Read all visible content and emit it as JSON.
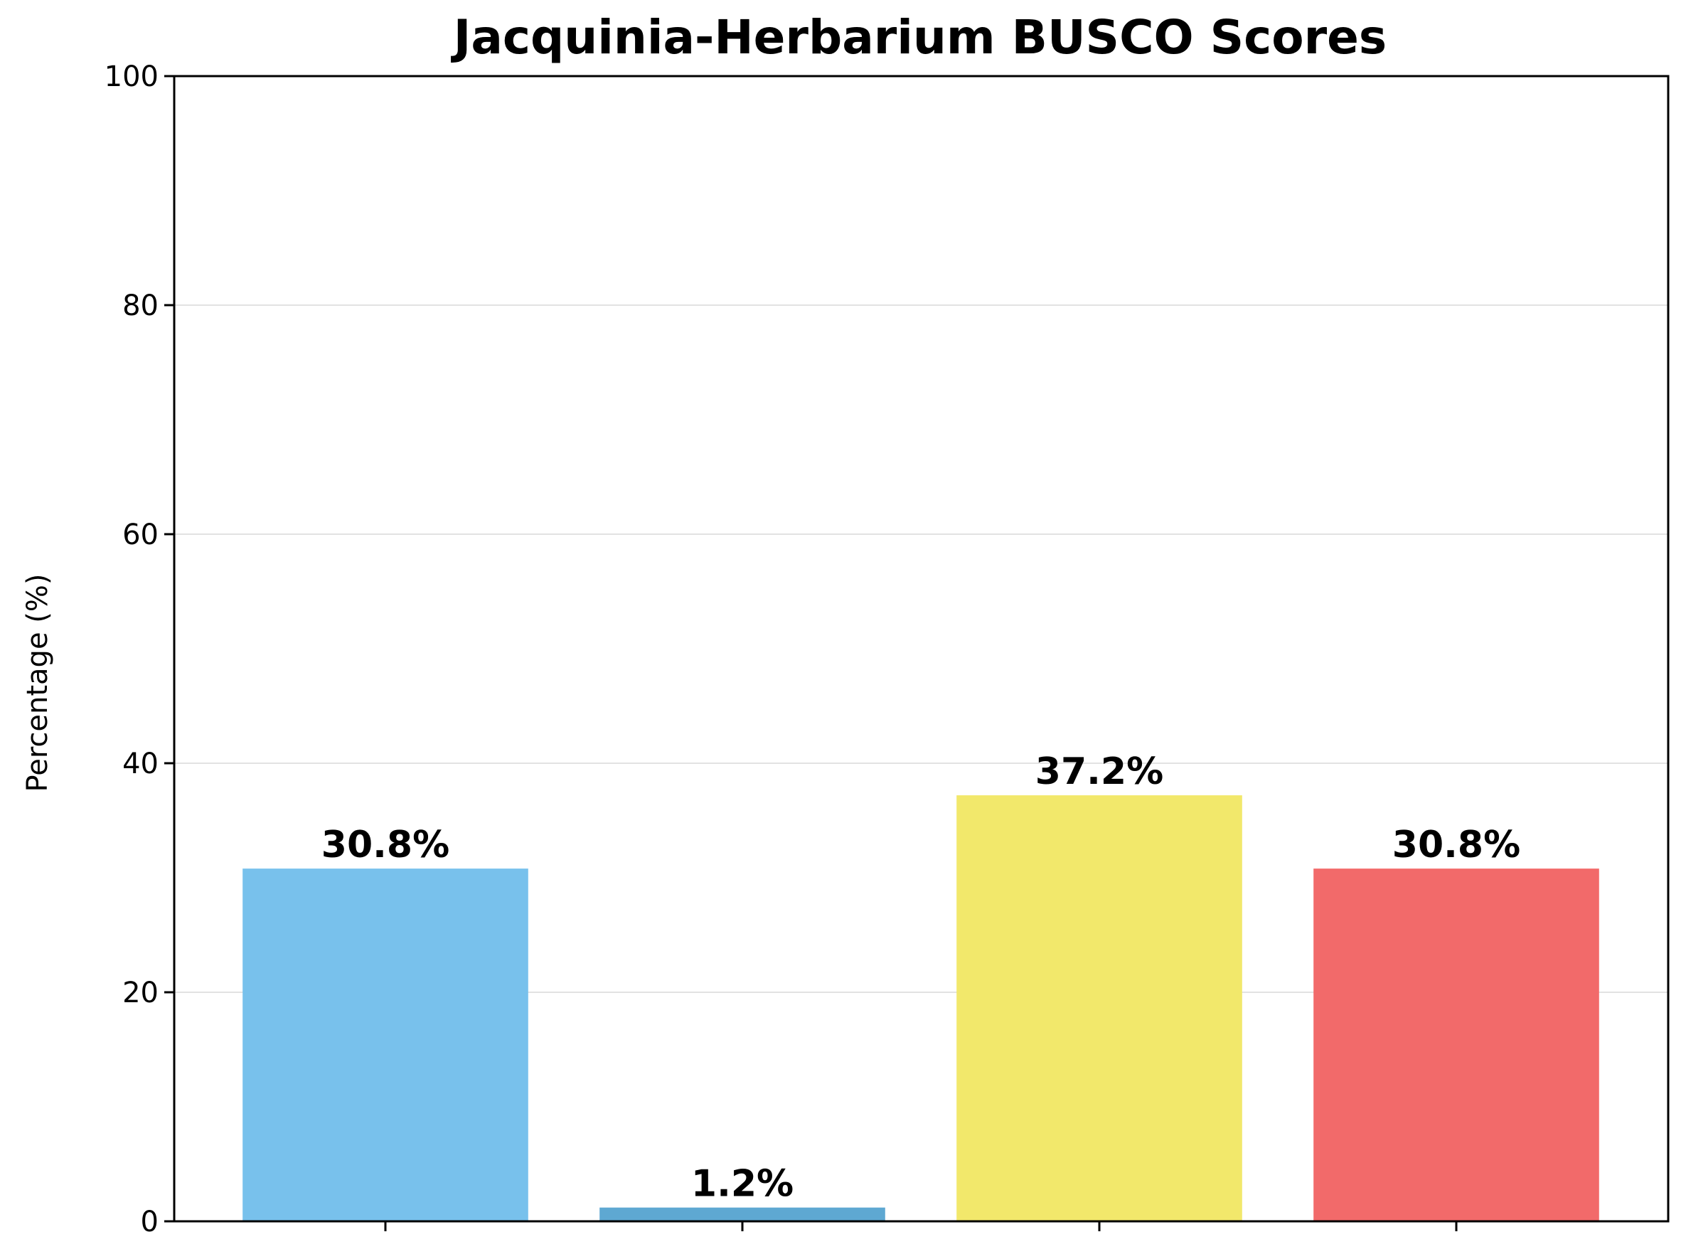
{
  "chart_data": {
    "type": "bar",
    "title": "Jacquinia-Herbarium BUSCO Scores",
    "xlabel": "",
    "ylabel": "Percentage (%)",
    "ylim": [
      0,
      100
    ],
    "yticks": [
      0,
      20,
      40,
      60,
      80,
      100
    ],
    "grid": true,
    "categories": [
      "",
      "",
      "",
      ""
    ],
    "values": [
      30.8,
      1.2,
      37.2,
      30.8
    ],
    "data_labels": [
      "30.8%",
      "1.2%",
      "37.2%",
      "30.8%"
    ],
    "colors": [
      "#78c1ec",
      "#5ea8d2",
      "#f2e86b",
      "#f26a6a"
    ]
  }
}
